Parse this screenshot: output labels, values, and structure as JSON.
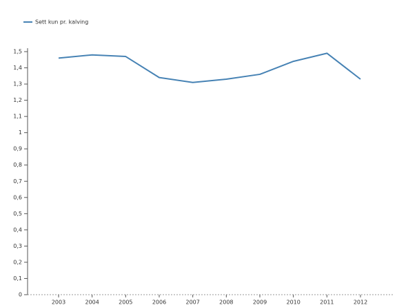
{
  "chart_data": {
    "type": "line",
    "categories": [
      "2003",
      "2004",
      "2005",
      "2006",
      "2007",
      "2008",
      "2009",
      "2010",
      "2011",
      "2012"
    ],
    "series": [
      {
        "name": "Sett kun pr. kalving",
        "color": "#4682b4",
        "values": [
          1.46,
          1.48,
          1.47,
          1.34,
          1.31,
          1.33,
          1.36,
          1.44,
          1.49,
          1.33
        ]
      }
    ],
    "ylim": [
      0,
      1.5
    ],
    "yticks": [
      0,
      {
        "value": 0.1,
        "label": "0,1"
      },
      {
        "value": 0.2,
        "label": "0,2"
      },
      {
        "value": 0.3,
        "label": "0,3"
      },
      {
        "value": 0.4,
        "label": "0,4"
      },
      {
        "value": 0.5,
        "label": "0,5"
      },
      {
        "value": 0.6,
        "label": "0,6"
      },
      {
        "value": 0.7,
        "label": "0,7"
      },
      {
        "value": 0.8,
        "label": "0,8"
      },
      {
        "value": 0.9,
        "label": "0,9"
      },
      1,
      {
        "value": 1.1,
        "label": "1,1"
      },
      {
        "value": 1.2,
        "label": "1,2"
      },
      {
        "value": 1.3,
        "label": "1,3"
      },
      {
        "value": 1.4,
        "label": "1,4"
      },
      {
        "value": 1.5,
        "label": "1,5"
      }
    ],
    "legend": "top-left",
    "grid": false
  }
}
